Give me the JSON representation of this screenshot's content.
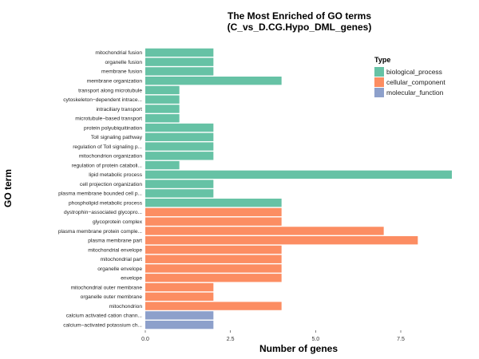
{
  "chart_data": {
    "type": "bar",
    "orientation": "horizontal",
    "title_line1": "The Most Enriched of GO terms",
    "title_line2": "(C_vs_D.CG.Hypo_DML_genes)",
    "xlabel": "Number of genes",
    "ylabel": "GO term",
    "xlim": [
      0,
      9
    ],
    "x_ticks": [
      "0.0",
      "2.5",
      "5.0",
      "7.5"
    ],
    "x_tick_values": [
      0,
      2.5,
      5,
      7.5
    ],
    "grid": false,
    "legend_position": "top-right",
    "legend_title": "Type",
    "legend": [
      {
        "name": "biological_process",
        "color": "#66c2a5"
      },
      {
        "name": "cellular_component",
        "color": "#fc8d62"
      },
      {
        "name": "molecular_function",
        "color": "#8da0cb"
      }
    ],
    "categories": [
      "mitochondrial fusion",
      "organelle fusion",
      "membrane fusion",
      "membrane organization",
      "transport along microtubule",
      "cytoskeleton−dependent intrace...",
      "intraciliary transport",
      "microtubule−based transport",
      "protein polyubiquitination",
      "Toll signaling pathway",
      "regulation of Toll signaling p...",
      "mitochondrion organization",
      "regulation of protein cataboli...",
      "lipid metabolic process",
      "cell projection organization",
      "plasma membrane bounded cell p...",
      "phospholipid metabolic process",
      "dystrophin−associated glycopro...",
      "glycoprotein complex",
      "plasma membrane protein comple...",
      "plasma membrane part",
      "mitochondrial envelope",
      "mitochondrial part",
      "organelle envelope",
      "envelope",
      "mitochondrial outer membrane",
      "organelle outer membrane",
      "mitochondrion",
      "calcium activated cation chann...",
      "calcium−activated potassium ch..."
    ],
    "values": [
      2,
      2,
      2,
      4,
      1,
      1,
      1,
      1,
      2,
      2,
      2,
      2,
      1,
      9,
      2,
      2,
      4,
      4,
      4,
      7,
      8,
      4,
      4,
      4,
      4,
      2,
      2,
      4,
      2,
      2
    ],
    "types": [
      "biological_process",
      "biological_process",
      "biological_process",
      "biological_process",
      "biological_process",
      "biological_process",
      "biological_process",
      "biological_process",
      "biological_process",
      "biological_process",
      "biological_process",
      "biological_process",
      "biological_process",
      "biological_process",
      "biological_process",
      "biological_process",
      "biological_process",
      "cellular_component",
      "cellular_component",
      "cellular_component",
      "cellular_component",
      "cellular_component",
      "cellular_component",
      "cellular_component",
      "cellular_component",
      "cellular_component",
      "cellular_component",
      "cellular_component",
      "molecular_function",
      "molecular_function"
    ]
  }
}
